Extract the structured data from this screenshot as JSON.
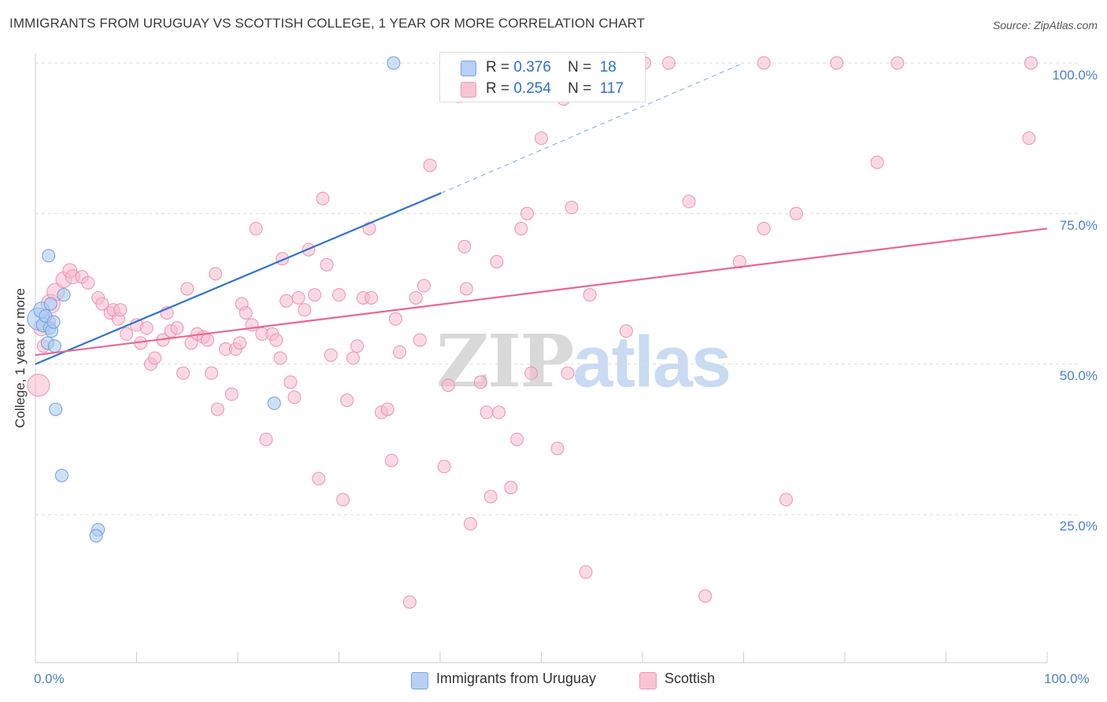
{
  "title": "IMMIGRANTS FROM URUGUAY VS SCOTTISH COLLEGE, 1 YEAR OR MORE CORRELATION CHART",
  "source": "Source: ZipAtlas.com",
  "legend": {
    "r_label": "R =",
    "n_label": "N =",
    "series1": {
      "r": "0.376",
      "n": "18"
    },
    "series2": {
      "r": "0.254",
      "n": "117"
    }
  },
  "watermark": {
    "zip": "ZIP",
    "atlas": "atlas"
  },
  "colors": {
    "blue_fill": "#aecbf3",
    "blue_stroke": "#6f9fe0",
    "blue_line": "#2f72d0",
    "pink_fill": "#f7b9cc",
    "pink_stroke": "#eb93b0",
    "pink_line": "#e86792",
    "grid": "#dddddd",
    "tick_text": "#4a7fd0"
  },
  "chart_data": {
    "type": "scatter",
    "title": "IMMIGRANTS FROM URUGUAY VS SCOTTISH COLLEGE, 1 YEAR OR MORE CORRELATION CHART",
    "xlabel": "",
    "ylabel": "College, 1 year or more",
    "xlim": [
      0,
      100
    ],
    "ylim": [
      0,
      102
    ],
    "x_tick_labels": [
      "0.0%",
      "100.0%"
    ],
    "y_tick_labels": [
      "100.0%",
      "75.0%",
      "50.0%",
      "25.0%"
    ],
    "y_ticks": [
      100,
      75,
      50,
      25
    ],
    "grid": true,
    "legend_position": "top-center",
    "series": [
      {
        "name": "Immigrants from Uruguay",
        "r": 0.376,
        "n": 18,
        "points": [
          [
            0.3,
            57.5,
            14
          ],
          [
            0.6,
            59.0,
            10
          ],
          [
            0.8,
            56.5,
            9
          ],
          [
            1.0,
            58.0,
            8
          ],
          [
            1.2,
            53.5,
            8
          ],
          [
            1.4,
            56.0,
            8
          ],
          [
            1.6,
            55.5,
            8
          ],
          [
            1.8,
            57.0,
            8
          ],
          [
            1.3,
            68.0,
            8
          ],
          [
            2.8,
            61.5,
            8
          ],
          [
            1.9,
            53.0,
            8
          ],
          [
            2.0,
            42.5,
            8
          ],
          [
            2.6,
            31.5,
            8
          ],
          [
            6.2,
            22.5,
            8
          ],
          [
            6.0,
            21.5,
            8
          ],
          [
            23.6,
            43.5,
            8
          ],
          [
            35.4,
            100.0,
            8
          ],
          [
            1.5,
            60.0,
            8
          ]
        ],
        "trend": {
          "x0": 0,
          "y0": 50.0,
          "x1": 40.1,
          "y1": 78.4,
          "dashed_to_x": 70.0,
          "dashed_to_y": 100.0
        }
      },
      {
        "name": "Scottish",
        "r": 0.254,
        "n": 117,
        "points": [
          [
            0.3,
            46.5,
            14
          ],
          [
            0.6,
            56.0,
            10
          ],
          [
            0.8,
            53.0,
            8
          ],
          [
            1.2,
            57.0,
            10
          ],
          [
            1.5,
            60.0,
            12
          ],
          [
            2.0,
            62.0,
            11
          ],
          [
            2.8,
            64.0,
            10
          ],
          [
            3.4,
            65.5,
            9
          ],
          [
            3.7,
            64.5,
            9
          ],
          [
            4.6,
            64.5,
            8
          ],
          [
            5.2,
            63.5,
            8
          ],
          [
            6.2,
            61.0,
            8
          ],
          [
            6.6,
            60.0,
            8
          ],
          [
            7.4,
            58.5,
            8
          ],
          [
            7.7,
            59.0,
            8
          ],
          [
            8.2,
            57.5,
            8
          ],
          [
            8.4,
            59.0,
            8
          ],
          [
            9.0,
            55.0,
            8
          ],
          [
            10.0,
            56.5,
            8
          ],
          [
            10.4,
            53.5,
            8
          ],
          [
            11.0,
            56.0,
            8
          ],
          [
            11.4,
            50.0,
            8
          ],
          [
            11.8,
            51.0,
            8
          ],
          [
            12.6,
            54.0,
            8
          ],
          [
            13.0,
            58.5,
            8
          ],
          [
            13.4,
            55.5,
            8
          ],
          [
            14.0,
            56.0,
            8
          ],
          [
            14.6,
            48.5,
            8
          ],
          [
            15.0,
            62.5,
            8
          ],
          [
            15.4,
            53.5,
            8
          ],
          [
            16.0,
            55.0,
            8
          ],
          [
            16.6,
            54.5,
            8
          ],
          [
            17.0,
            54.0,
            8
          ],
          [
            17.4,
            48.5,
            8
          ],
          [
            17.8,
            65.0,
            8
          ],
          [
            18.0,
            42.5,
            8
          ],
          [
            18.8,
            52.5,
            8
          ],
          [
            19.4,
            45.0,
            8
          ],
          [
            19.8,
            52.5,
            8
          ],
          [
            20.2,
            53.5,
            8
          ],
          [
            20.4,
            60.0,
            8
          ],
          [
            20.8,
            58.5,
            8
          ],
          [
            21.4,
            56.5,
            8
          ],
          [
            21.8,
            72.5,
            8
          ],
          [
            22.4,
            55.0,
            8
          ],
          [
            22.8,
            37.5,
            8
          ],
          [
            23.4,
            55.0,
            8
          ],
          [
            23.8,
            54.0,
            8
          ],
          [
            24.2,
            51.0,
            8
          ],
          [
            24.4,
            67.5,
            8
          ],
          [
            24.8,
            60.5,
            8
          ],
          [
            25.2,
            47.0,
            8
          ],
          [
            25.6,
            44.5,
            8
          ],
          [
            26.0,
            61.0,
            8
          ],
          [
            26.6,
            59.0,
            8
          ],
          [
            27.0,
            69.0,
            8
          ],
          [
            27.6,
            61.5,
            8
          ],
          [
            28.0,
            31.0,
            8
          ],
          [
            28.4,
            77.5,
            8
          ],
          [
            28.8,
            66.5,
            8
          ],
          [
            29.2,
            51.5,
            8
          ],
          [
            30.0,
            61.5,
            8
          ],
          [
            30.4,
            27.5,
            8
          ],
          [
            30.8,
            44.0,
            8
          ],
          [
            31.4,
            51.0,
            8
          ],
          [
            31.8,
            53.0,
            8
          ],
          [
            32.4,
            61.0,
            8
          ],
          [
            33.0,
            72.5,
            8
          ],
          [
            33.2,
            61.0,
            8
          ],
          [
            34.2,
            42.0,
            8
          ],
          [
            34.8,
            42.5,
            8
          ],
          [
            35.2,
            34.0,
            8
          ],
          [
            35.6,
            57.5,
            8
          ],
          [
            36.0,
            52.0,
            8
          ],
          [
            37.0,
            10.5,
            8
          ],
          [
            37.6,
            61.0,
            8
          ],
          [
            38.0,
            54.0,
            8
          ],
          [
            38.4,
            63.0,
            8
          ],
          [
            39.0,
            83.0,
            8
          ],
          [
            40.4,
            33.0,
            8
          ],
          [
            40.8,
            46.5,
            8
          ],
          [
            41.8,
            94.5,
            8
          ],
          [
            42.0,
            94.5,
            8
          ],
          [
            42.4,
            69.5,
            8
          ],
          [
            42.6,
            62.5,
            8
          ],
          [
            43.0,
            23.5,
            8
          ],
          [
            44.0,
            47.0,
            8
          ],
          [
            44.6,
            42.0,
            8
          ],
          [
            45.0,
            28.0,
            8
          ],
          [
            45.6,
            67.0,
            8
          ],
          [
            45.8,
            42.0,
            8
          ],
          [
            47.0,
            29.5,
            8
          ],
          [
            47.6,
            37.5,
            8
          ],
          [
            48.0,
            72.5,
            8
          ],
          [
            48.6,
            75.0,
            8
          ],
          [
            49.0,
            48.5,
            8
          ],
          [
            50.0,
            87.5,
            8
          ],
          [
            51.2,
            96.0,
            8
          ],
          [
            51.6,
            36.0,
            8
          ],
          [
            52.2,
            94.0,
            8
          ],
          [
            52.6,
            48.5,
            8
          ],
          [
            53.0,
            76.0,
            8
          ],
          [
            54.4,
            15.5,
            8
          ],
          [
            54.8,
            61.5,
            8
          ],
          [
            57.6,
            100.0,
            8
          ],
          [
            58.0,
            100.0,
            8
          ],
          [
            58.4,
            55.5,
            8
          ],
          [
            59.6,
            100.0,
            8
          ],
          [
            60.2,
            100.0,
            8
          ],
          [
            62.6,
            100.0,
            8
          ],
          [
            64.6,
            77.0,
            8
          ],
          [
            66.2,
            11.5,
            8
          ],
          [
            69.6,
            67.0,
            8
          ],
          [
            72.0,
            100.0,
            8
          ],
          [
            72.0,
            72.5,
            8
          ],
          [
            74.2,
            27.5,
            8
          ],
          [
            75.2,
            75.0,
            8
          ],
          [
            79.2,
            100.0,
            8
          ],
          [
            83.2,
            83.5,
            8
          ],
          [
            85.2,
            100.0,
            8
          ],
          [
            98.2,
            87.5,
            8
          ],
          [
            98.4,
            100.0,
            8
          ]
        ],
        "trend": {
          "x0": 0,
          "y0": 51.5,
          "x1": 100,
          "y1": 72.5
        }
      }
    ]
  },
  "bottom_legend": [
    {
      "label": "Immigrants from Uruguay"
    },
    {
      "label": "Scottish"
    }
  ]
}
